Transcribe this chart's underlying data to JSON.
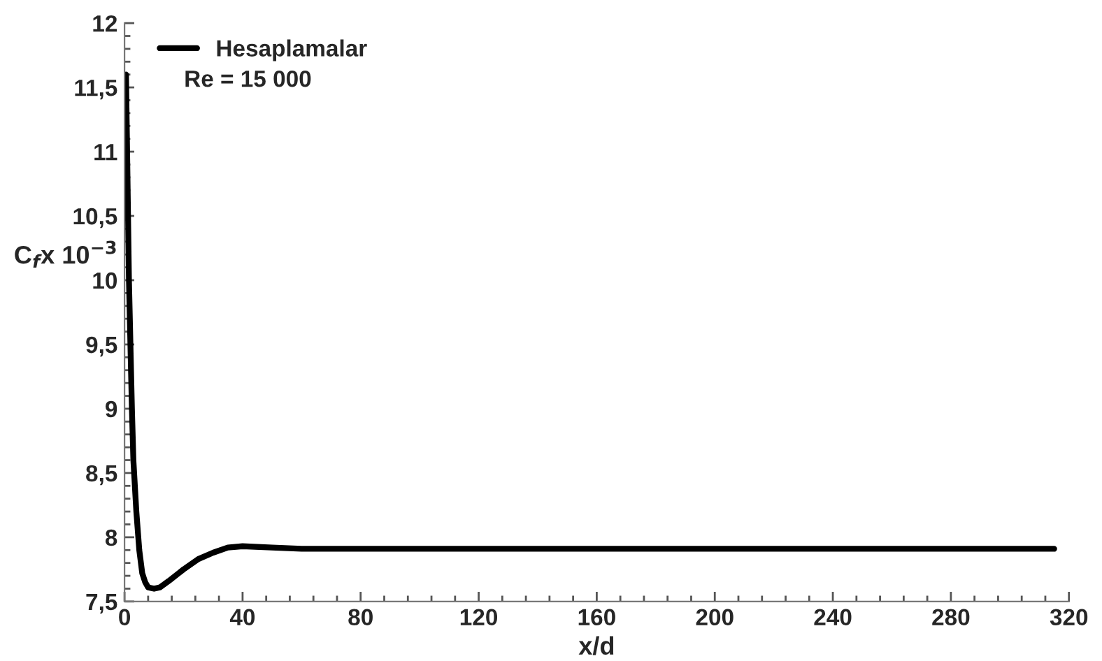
{
  "chart_data": {
    "type": "line",
    "xlabel": "x/d",
    "ylabel": "C$_{f}$x 10$^{−3}$",
    "annotations": [
      "Re = 15 000"
    ],
    "x": [
      0.5,
      1,
      1.5,
      2,
      2.5,
      3,
      4,
      5,
      6,
      7,
      8,
      10,
      12,
      15,
      20,
      25,
      30,
      35,
      40,
      50,
      60,
      80,
      120,
      200,
      315
    ],
    "series": [
      {
        "name": "Hesaplamalar",
        "color": "#000000",
        "values": [
          11.6,
          10.8,
          10.0,
          9.5,
          9.0,
          8.6,
          8.2,
          7.9,
          7.72,
          7.65,
          7.61,
          7.6,
          7.61,
          7.66,
          7.75,
          7.83,
          7.88,
          7.92,
          7.93,
          7.92,
          7.91,
          7.91,
          7.91,
          7.91,
          7.91
        ]
      }
    ],
    "xlim": [
      0,
      320
    ],
    "xticks": [
      0,
      40,
      80,
      120,
      160,
      200,
      240,
      280,
      320
    ],
    "ylim": [
      7.5,
      12
    ],
    "yticks": [
      {
        "value": 7.5,
        "label": "7,5"
      },
      8,
      {
        "value": 8.5,
        "label": "8,5"
      },
      9,
      {
        "value": 9.5,
        "label": "9,5"
      },
      10,
      {
        "value": 10.5,
        "label": "10,5"
      },
      11,
      {
        "value": 11.5,
        "label": "11,5"
      },
      12
    ],
    "grid": false,
    "legend": "top left",
    "marker": "none",
    "line_style": "solid"
  }
}
